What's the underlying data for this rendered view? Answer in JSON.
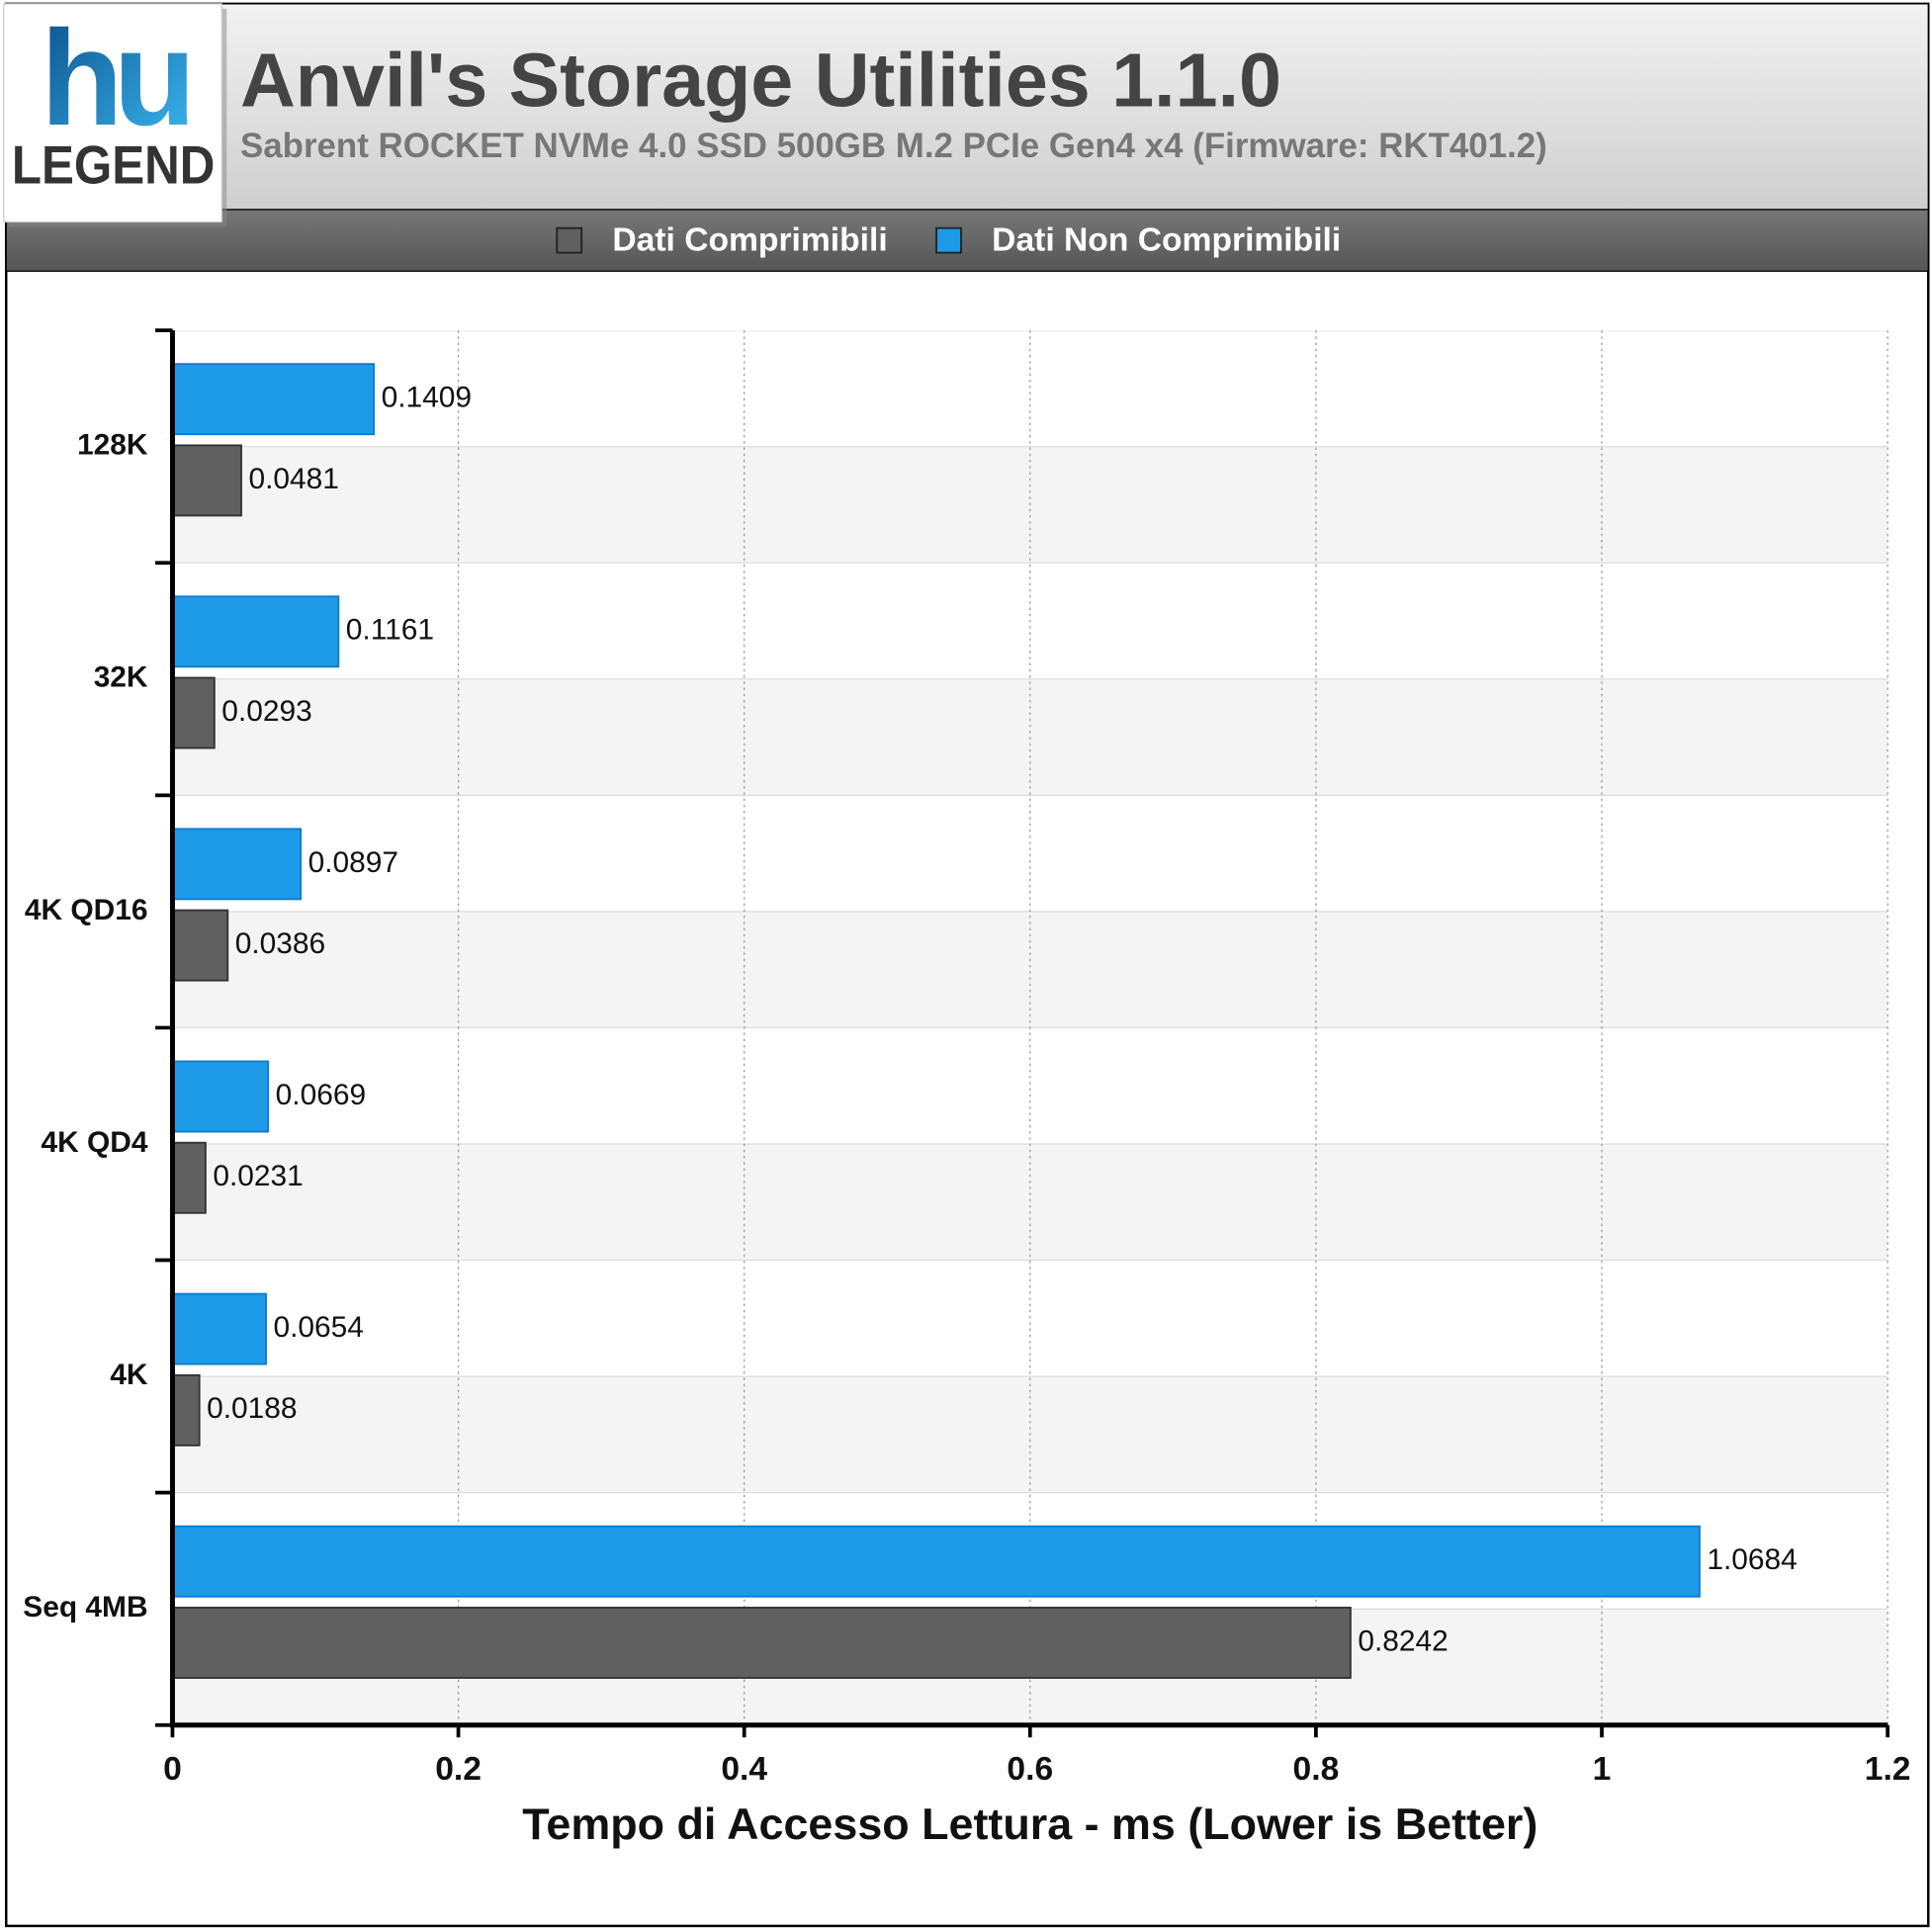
{
  "logo": {
    "mark": "hu",
    "text": "LEGEND"
  },
  "chart_data": {
    "type": "hbar",
    "title": "Anvil's Storage Utilities 1.1.0",
    "subtitle": "Sabrent ROCKET NVMe 4.0 SSD 500GB M.2 PCIe Gen4 x4 (Firmware: RKT401.2)",
    "x_label": "Tempo di Accesso Lettura - ms (Lower is Better)",
    "categories": [
      "128K",
      "32K",
      "4K QD16",
      "4K QD4",
      "4K",
      "Seq 4MB"
    ],
    "series": [
      {
        "name": "Dati Comprimibili",
        "color": "#606060",
        "values": [
          0.0481,
          0.0293,
          0.0386,
          0.0231,
          0.0188,
          0.8242
        ]
      },
      {
        "name": "Dati Non Comprimibili",
        "color": "#1e9be8",
        "values": [
          0.1409,
          0.1161,
          0.0897,
          0.0669,
          0.0654,
          1.0684
        ]
      }
    ],
    "xlim": [
      0,
      1.2
    ],
    "xticks": [
      0,
      0.2,
      0.4,
      0.6,
      0.8,
      1,
      1.2
    ],
    "grid": true,
    "legend": "top"
  }
}
